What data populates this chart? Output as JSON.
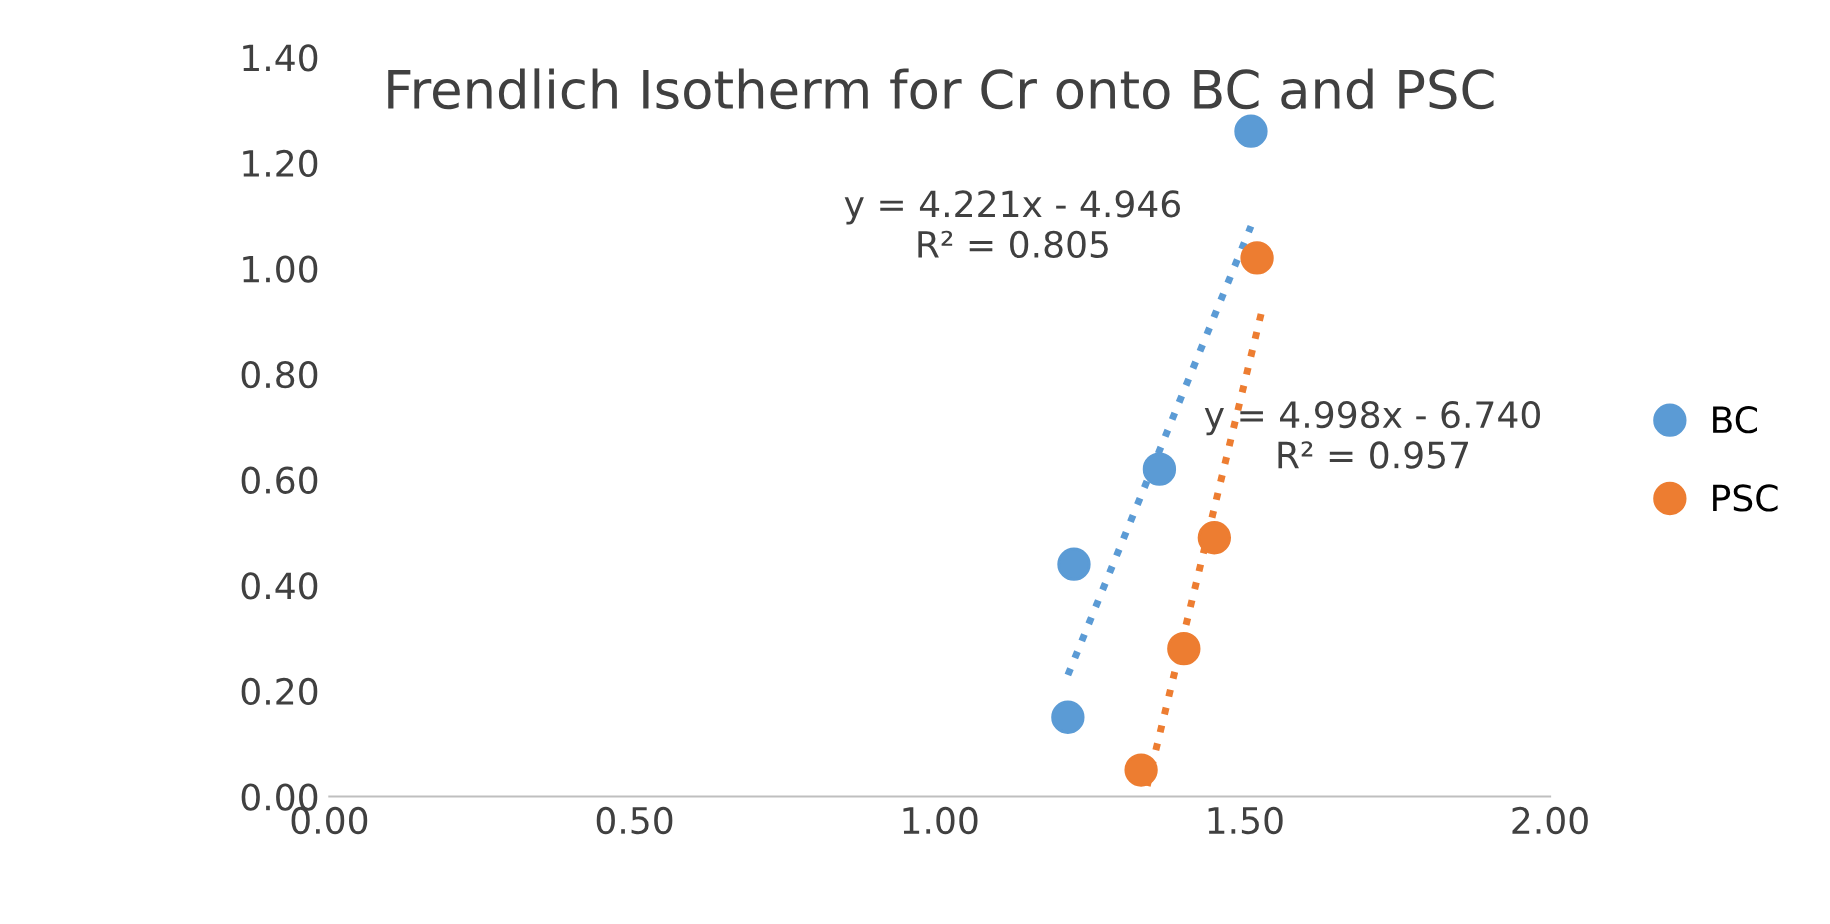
{
  "chart_data": {
    "type": "scatter",
    "title": "Frendlich Isotherm for Cr onto BC and PSC",
    "xlim": [
      0,
      2
    ],
    "xticks": [
      {
        "value": 0,
        "label": "0.00"
      },
      {
        "value": 0.5,
        "label": "0.50"
      },
      {
        "value": 1,
        "label": "1.00"
      },
      {
        "value": 1.5,
        "label": "1.50"
      },
      {
        "value": 2,
        "label": "2.00"
      }
    ],
    "ylim": [
      0,
      1.4
    ],
    "yticks": [
      {
        "value": 0,
        "label": "0.00"
      },
      {
        "value": 0.2,
        "label": "0.20"
      },
      {
        "value": 0.4,
        "label": "0.40"
      },
      {
        "value": 0.6,
        "label": "0.60"
      },
      {
        "value": 0.8,
        "label": "0.80"
      },
      {
        "value": 1.0,
        "label": "1.00"
      },
      {
        "value": 1.2,
        "label": "1.20"
      },
      {
        "value": 1.4,
        "label": "1.40"
      }
    ],
    "legend": "right",
    "grid": false,
    "series": [
      {
        "name": "BC",
        "marker": "circle",
        "color": "#5b9bd5",
        "x": [
          1.21,
          1.22,
          1.36,
          1.51
        ],
        "values": [
          0.15,
          0.44,
          0.62,
          1.26
        ]
      },
      {
        "name": "PSC",
        "marker": "circle",
        "color": "#ed7d31",
        "x": [
          1.33,
          1.4,
          1.45,
          1.52
        ],
        "values": [
          0.05,
          0.28,
          0.49,
          1.02
        ]
      },
      {
        "type": "line",
        "line_style": "dotted",
        "color": "#5b9bd5",
        "x": [
          1.21,
          1.51
        ],
        "values": [
          0.23,
          1.08
        ]
      },
      {
        "type": "line",
        "line_style": "dotted",
        "color": "#ed7d31",
        "x": [
          1.34,
          1.53
        ],
        "values": [
          0.02,
          0.93
        ]
      }
    ],
    "annotations": [
      "y = 4.221x - 4.946\nR² = 0.805",
      "y = 4.998x - 6.740\nR² = 0.957"
    ]
  }
}
